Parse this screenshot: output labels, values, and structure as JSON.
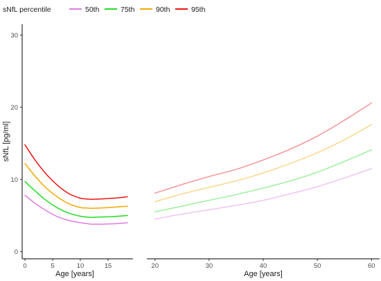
{
  "legend": {
    "title": "sNfL percentile",
    "placement": "top-left",
    "items": [
      {
        "label": "50th",
        "color": "#e07be0"
      },
      {
        "label": "75th",
        "color": "#22dd22"
      },
      {
        "label": "90th",
        "color": "#f0a800"
      },
      {
        "label": "95th",
        "color": "#ee1111"
      }
    ]
  },
  "chart_data": [
    {
      "type": "line",
      "panel": "children",
      "xlabel": "Age [years]",
      "ylabel": "sNfL [pg/ml]",
      "xlim": [
        -0.5,
        19.5
      ],
      "ylim": [
        -1,
        31.5
      ],
      "xticks": [
        0,
        5,
        10,
        15
      ],
      "yticks": [
        0,
        10,
        20,
        30
      ],
      "grid": false,
      "x": [
        0,
        2,
        4,
        6,
        8,
        10,
        11,
        12,
        14,
        16,
        18.5
      ],
      "series": [
        {
          "name": "50th",
          "color": "#e07be0",
          "values": [
            7.8,
            6.6,
            5.6,
            4.8,
            4.3,
            4.0,
            3.9,
            3.8,
            3.8,
            3.85,
            4.0
          ]
        },
        {
          "name": "75th",
          "color": "#22dd22",
          "values": [
            9.7,
            8.3,
            7.0,
            6.0,
            5.3,
            4.9,
            4.8,
            4.75,
            4.8,
            4.85,
            5.0
          ]
        },
        {
          "name": "90th",
          "color": "#f0a800",
          "values": [
            12.2,
            10.3,
            8.7,
            7.5,
            6.6,
            6.1,
            6.05,
            6.0,
            6.05,
            6.15,
            6.3
          ]
        },
        {
          "name": "95th",
          "color": "#ee1111",
          "values": [
            14.8,
            12.5,
            10.6,
            9.1,
            8.0,
            7.4,
            7.3,
            7.25,
            7.3,
            7.4,
            7.6
          ]
        }
      ]
    },
    {
      "type": "line",
      "panel": "adults",
      "xlabel": "Age [years]",
      "ylabel": "",
      "xlim": [
        18.5,
        61.5
      ],
      "ylim": [
        -1,
        31.5
      ],
      "xticks": [
        20,
        30,
        40,
        50,
        60
      ],
      "grid": false,
      "faded": true,
      "x": [
        20,
        25,
        30,
        35,
        40,
        45,
        50,
        55,
        60
      ],
      "series": [
        {
          "name": "50th",
          "color": "#e07be0",
          "values": [
            4.5,
            5.2,
            5.8,
            6.4,
            7.1,
            8.0,
            9.0,
            10.2,
            11.5
          ]
        },
        {
          "name": "75th",
          "color": "#22dd22",
          "values": [
            5.5,
            6.3,
            7.1,
            7.9,
            8.8,
            9.8,
            11.0,
            12.5,
            14.1
          ]
        },
        {
          "name": "90th",
          "color": "#f0a800",
          "values": [
            6.9,
            8.0,
            8.9,
            9.8,
            10.9,
            12.2,
            13.7,
            15.5,
            17.6
          ]
        },
        {
          "name": "95th",
          "color": "#ee1111",
          "values": [
            8.1,
            9.3,
            10.4,
            11.4,
            12.7,
            14.2,
            16.0,
            18.2,
            20.6
          ]
        }
      ]
    }
  ]
}
